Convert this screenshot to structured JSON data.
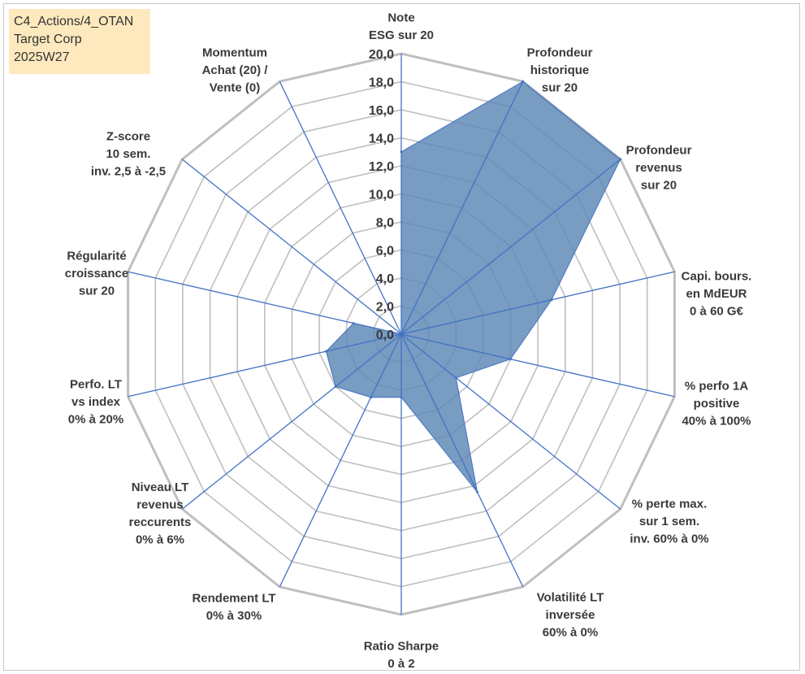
{
  "info_box": {
    "line1": "C4_Actions/4_OTAN",
    "line2": "Target Corp",
    "line3": "2025W27"
  },
  "chart_data": {
    "type": "radar",
    "title": "",
    "rmin": 0,
    "rmax": 20,
    "ticks": [
      "0,0",
      "2,0",
      "4,0",
      "6,0",
      "8,0",
      "10,0",
      "12,0",
      "14,0",
      "16,0",
      "18,0",
      "20,0"
    ],
    "axes": [
      {
        "label": [
          "Note",
          "ESG sur 20"
        ],
        "value": 13.0
      },
      {
        "label": [
          "Profondeur",
          "historique",
          "sur 20"
        ],
        "value": 20.0
      },
      {
        "label": [
          "Profondeur",
          "revenus",
          "sur 20"
        ],
        "value": 20.0
      },
      {
        "label": [
          "Capi. bours.",
          "en MdEUR",
          "0 à 60 G€"
        ],
        "value": 11.0
      },
      {
        "label": [
          "% perfo 1A",
          "positive",
          "40% à 100%"
        ],
        "value": 8.0
      },
      {
        "label": [
          "% perte max.",
          "sur 1 sem.",
          "inv. 60% à 0%"
        ],
        "value": 5.0
      },
      {
        "label": [
          "Volatilité LT",
          "inversée",
          "60% à 0%"
        ],
        "value": 12.5
      },
      {
        "label": [
          "Ratio Sharpe",
          "0 à 2"
        ],
        "value": 4.5
      },
      {
        "label": [
          "Rendement LT",
          "0% à 30%"
        ],
        "value": 5.0
      },
      {
        "label": [
          "Niveau LT",
          "revenus",
          "reccurents",
          "0% à 6%"
        ],
        "value": 6.0
      },
      {
        "label": [
          "Perfo. LT",
          "vs index",
          "0% à 20%"
        ],
        "value": 5.5
      },
      {
        "label": [
          "Régularité",
          "croissance",
          "sur 20"
        ],
        "value": 3.5
      },
      {
        "label": [
          "Z-score",
          "10 sem.",
          "inv. 2,5 à -2,5"
        ],
        "value": 0.0
      },
      {
        "label": [
          "Momentum",
          "Achat (20) /",
          "Vente (0)"
        ],
        "value": 0.0
      }
    ],
    "colors": {
      "fill": "#5a86b4",
      "line": "#4472c4",
      "grid": "#bfbfbf",
      "text": "#3a3a3a"
    },
    "grid": true,
    "legend": "none"
  }
}
